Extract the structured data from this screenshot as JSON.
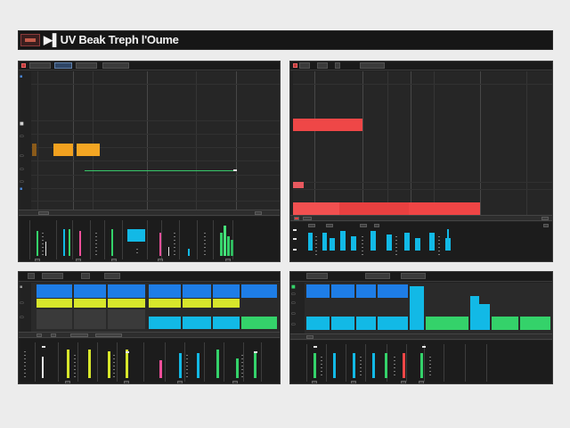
{
  "title": "▶▌UV Beak Treph l'Oume",
  "colors": {
    "orange": "#f2a11f",
    "green": "#34d26a",
    "red": "#ef4747",
    "cyan": "#12b9e6",
    "blue": "#1e7de6",
    "yellow": "#d7e62b",
    "pink": "#ef4f9a",
    "panel": "#222222"
  },
  "icons": [
    "app-logo-icon",
    "play-icon",
    "record-icon"
  ]
}
